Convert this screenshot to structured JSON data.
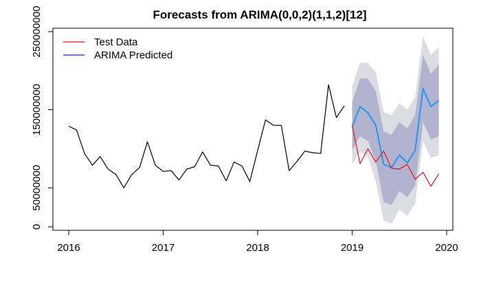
{
  "chart_data": {
    "type": "line",
    "title": "Forecasts from ARIMA(0,0,2)(1,1,2)[12]",
    "xlabel": "",
    "ylabel": "",
    "xlim": [
      2015.8,
      2020.1
    ],
    "ylim": [
      0,
      250000000
    ],
    "x_ticks": [
      2016,
      2017,
      2018,
      2019,
      2020
    ],
    "x_tick_labels": [
      "2016",
      "2017",
      "2018",
      "2019",
      "2020"
    ],
    "y_ticks": [
      0,
      50000000,
      150000000,
      250000000
    ],
    "y_tick_labels": [
      "0",
      "50000000",
      "150000000",
      "250000000"
    ],
    "legend": {
      "position": "top-left",
      "entries": [
        {
          "label": "Test Data",
          "color": "#e8101a"
        },
        {
          "label": "ARIMA Predicted",
          "color": "#1a1aff"
        }
      ]
    },
    "colors": {
      "history": "#000000",
      "test": "#e8101a",
      "forecast": "#2196f3",
      "band95": "#dcdce3",
      "band80": "#b2b3cf"
    },
    "history": {
      "x": [
        2016.0,
        2016.083,
        2016.167,
        2016.25,
        2016.333,
        2016.417,
        2016.5,
        2016.583,
        2016.667,
        2016.75,
        2016.833,
        2016.917,
        2017.0,
        2017.083,
        2017.167,
        2017.25,
        2017.333,
        2017.417,
        2017.5,
        2017.583,
        2017.667,
        2017.75,
        2017.833,
        2017.917,
        2018.0,
        2018.083,
        2018.167,
        2018.25,
        2018.333,
        2018.417,
        2018.5,
        2018.583,
        2018.667,
        2018.75,
        2018.833,
        2018.917
      ],
      "y": [
        129000000,
        124000000,
        94000000,
        79000000,
        90000000,
        74000000,
        67000000,
        50000000,
        67000000,
        76000000,
        109000000,
        79000000,
        71000000,
        72000000,
        60000000,
        74000000,
        77000000,
        96000000,
        79000000,
        78000000,
        59000000,
        83000000,
        78000000,
        58000000,
        98000000,
        137000000,
        130000000,
        130000000,
        72000000,
        84000000,
        97000000,
        95000000,
        94000000,
        182000000,
        140000000,
        155000000
      ]
    },
    "series": [
      {
        "name": "Test Data",
        "x": [
          2019.0,
          2019.083,
          2019.167,
          2019.25,
          2019.333,
          2019.417,
          2019.5,
          2019.583,
          2019.667,
          2019.75,
          2019.833,
          2019.917
        ],
        "y": [
          130000000,
          81000000,
          100000000,
          83000000,
          97000000,
          75000000,
          74000000,
          80000000,
          61000000,
          70000000,
          52000000,
          68000000
        ]
      },
      {
        "name": "ARIMA Predicted",
        "x": [
          2019.0,
          2019.083,
          2019.167,
          2019.25,
          2019.333,
          2019.417,
          2019.5,
          2019.583,
          2019.667,
          2019.75,
          2019.833,
          2019.917
        ],
        "y": [
          128000000,
          154000000,
          146000000,
          130000000,
          80000000,
          76000000,
          92000000,
          82000000,
          98000000,
          177000000,
          154000000,
          162000000
        ]
      }
    ],
    "bands": {
      "x": [
        2019.0,
        2019.083,
        2019.167,
        2019.25,
        2019.333,
        2019.417,
        2019.5,
        2019.583,
        2019.667,
        2019.75,
        2019.833,
        2019.917
      ],
      "lo95": [
        80000000,
        96000000,
        90000000,
        58000000,
        8000000,
        4000000,
        22000000,
        14000000,
        30000000,
        110000000,
        88000000,
        92000000
      ],
      "hi95": [
        180000000,
        210000000,
        210000000,
        198000000,
        147000000,
        143000000,
        158000000,
        150000000,
        166000000,
        244000000,
        220000000,
        230000000
      ],
      "lo80": [
        98000000,
        116000000,
        110000000,
        84000000,
        32000000,
        28000000,
        46000000,
        38000000,
        53000000,
        134000000,
        112000000,
        116000000
      ],
      "hi80": [
        160000000,
        190000000,
        190000000,
        174000000,
        122000000,
        118000000,
        134000000,
        126000000,
        143000000,
        220000000,
        196000000,
        208000000
      ]
    }
  }
}
